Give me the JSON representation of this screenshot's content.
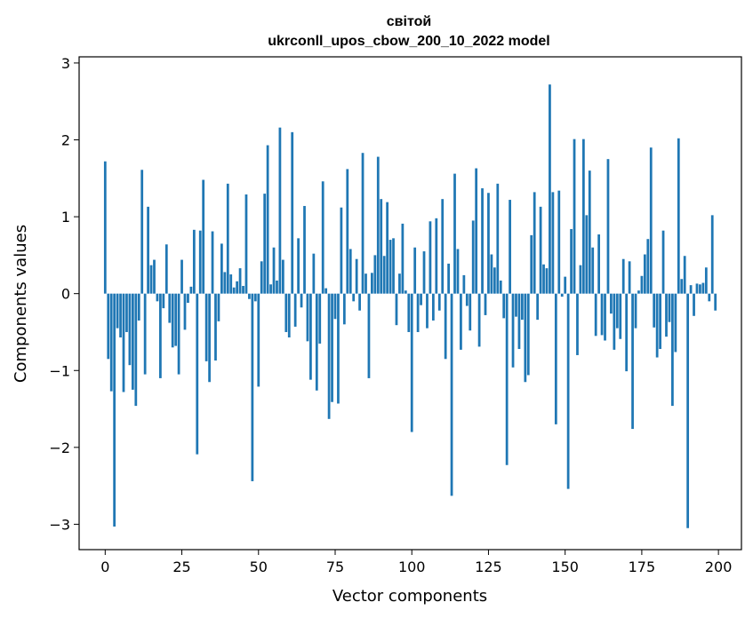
{
  "chart_data": {
    "type": "bar",
    "title": "світой",
    "subtitle": "ukrconll_upos_cbow_200_10_2022 model",
    "xlabel": "Vector components",
    "ylabel": "Components values",
    "xlim": [
      -8.5,
      207.5
    ],
    "ylim": [
      -3.33,
      3.08
    ],
    "xticks": [
      0,
      25,
      50,
      75,
      100,
      125,
      150,
      175,
      200
    ],
    "xtick_labels": [
      "0",
      "25",
      "50",
      "75",
      "100",
      "125",
      "150",
      "175",
      "200"
    ],
    "yticks": [
      -3,
      -2,
      -1,
      0,
      1,
      2,
      3
    ],
    "ytick_labels": [
      "−3",
      "−2",
      "−1",
      "0",
      "1",
      "2",
      "3"
    ],
    "grid": false,
    "bar_color": "#1f77b4",
    "x": [
      0,
      1,
      2,
      3,
      4,
      5,
      6,
      7,
      8,
      9,
      10,
      11,
      12,
      13,
      14,
      15,
      16,
      17,
      18,
      19,
      20,
      21,
      22,
      23,
      24,
      25,
      26,
      27,
      28,
      29,
      30,
      31,
      32,
      33,
      34,
      35,
      36,
      37,
      38,
      39,
      40,
      41,
      42,
      43,
      44,
      45,
      46,
      47,
      48,
      49,
      50,
      51,
      52,
      53,
      54,
      55,
      56,
      57,
      58,
      59,
      60,
      61,
      62,
      63,
      64,
      65,
      66,
      67,
      68,
      69,
      70,
      71,
      72,
      73,
      74,
      75,
      76,
      77,
      78,
      79,
      80,
      81,
      82,
      83,
      84,
      85,
      86,
      87,
      88,
      89,
      90,
      91,
      92,
      93,
      94,
      95,
      96,
      97,
      98,
      99,
      100,
      101,
      102,
      103,
      104,
      105,
      106,
      107,
      108,
      109,
      110,
      111,
      112,
      113,
      114,
      115,
      116,
      117,
      118,
      119,
      120,
      121,
      122,
      123,
      124,
      125,
      126,
      127,
      128,
      129,
      130,
      131,
      132,
      133,
      134,
      135,
      136,
      137,
      138,
      139,
      140,
      141,
      142,
      143,
      144,
      145,
      146,
      147,
      148,
      149,
      150,
      151,
      152,
      153,
      154,
      155,
      156,
      157,
      158,
      159,
      160,
      161,
      162,
      163,
      164,
      165,
      166,
      167,
      168,
      169,
      170,
      171,
      172,
      173,
      174,
      175,
      176,
      177,
      178,
      179,
      180,
      181,
      182,
      183,
      184,
      185,
      186,
      187,
      188,
      189,
      190,
      191,
      192,
      193,
      194,
      195,
      196,
      197,
      198,
      199
    ],
    "values": [
      1.72,
      -0.85,
      -1.27,
      -3.03,
      -0.45,
      -0.57,
      -1.28,
      -0.5,
      -0.93,
      -1.25,
      -1.46,
      -0.35,
      1.61,
      -1.05,
      1.13,
      0.37,
      0.44,
      -0.1,
      -1.1,
      -0.19,
      0.64,
      -0.38,
      -0.7,
      -0.68,
      -1.05,
      0.44,
      -0.47,
      -0.12,
      0.09,
      0.83,
      -2.09,
      0.82,
      1.48,
      -0.88,
      -1.15,
      0.81,
      -0.87,
      -0.36,
      0.65,
      0.28,
      1.43,
      0.25,
      0.08,
      0.16,
      0.33,
      0.1,
      1.29,
      -0.07,
      -2.44,
      -0.1,
      -1.21,
      0.42,
      1.3,
      1.93,
      0.12,
      0.6,
      0.17,
      2.16,
      0.44,
      -0.5,
      -0.57,
      2.1,
      -0.43,
      0.72,
      -0.18,
      1.14,
      -0.62,
      -1.12,
      0.52,
      -1.26,
      -0.65,
      1.46,
      0.07,
      -1.63,
      -1.41,
      -0.33,
      -1.43,
      1.12,
      -0.4,
      1.62,
      0.58,
      -0.1,
      0.45,
      -0.22,
      1.83,
      0.26,
      -1.1,
      0.27,
      0.5,
      1.78,
      1.23,
      0.49,
      1.19,
      0.7,
      0.72,
      -0.41,
      0.26,
      0.91,
      0.04,
      -0.5,
      -1.8,
      0.6,
      -0.5,
      -0.15,
      0.55,
      -0.45,
      0.94,
      -0.35,
      0.98,
      -0.22,
      1.23,
      -0.85,
      0.39,
      -2.63,
      1.56,
      0.58,
      -0.73,
      0.24,
      -0.16,
      -0.48,
      0.95,
      1.63,
      -0.69,
      1.37,
      -0.28,
      1.31,
      0.51,
      0.34,
      1.43,
      0.17,
      -0.32,
      -2.23,
      1.22,
      -0.96,
      -0.3,
      -0.72,
      -0.34,
      -1.15,
      -1.06,
      0.76,
      1.32,
      -0.34,
      1.13,
      0.38,
      0.33,
      2.72,
      1.32,
      -1.7,
      1.34,
      -0.04,
      0.22,
      -2.54,
      0.84,
      2.01,
      -0.8,
      0.37,
      2.01,
      1.02,
      1.6,
      0.6,
      -0.55,
      0.77,
      -0.54,
      -0.61,
      1.75,
      -0.26,
      -0.73,
      -0.45,
      -0.59,
      0.45,
      -1.01,
      0.42,
      -1.76,
      -0.45,
      0.04,
      0.23,
      0.51,
      0.71,
      1.9,
      -0.44,
      -0.83,
      -0.72,
      0.82,
      -0.56,
      -0.37,
      -1.46,
      -0.76,
      2.02,
      0.19,
      0.49,
      -3.05,
      0.11,
      -0.29,
      0.13,
      0.12,
      0.14,
      0.34,
      -0.1,
      1.02,
      -0.22
    ]
  }
}
